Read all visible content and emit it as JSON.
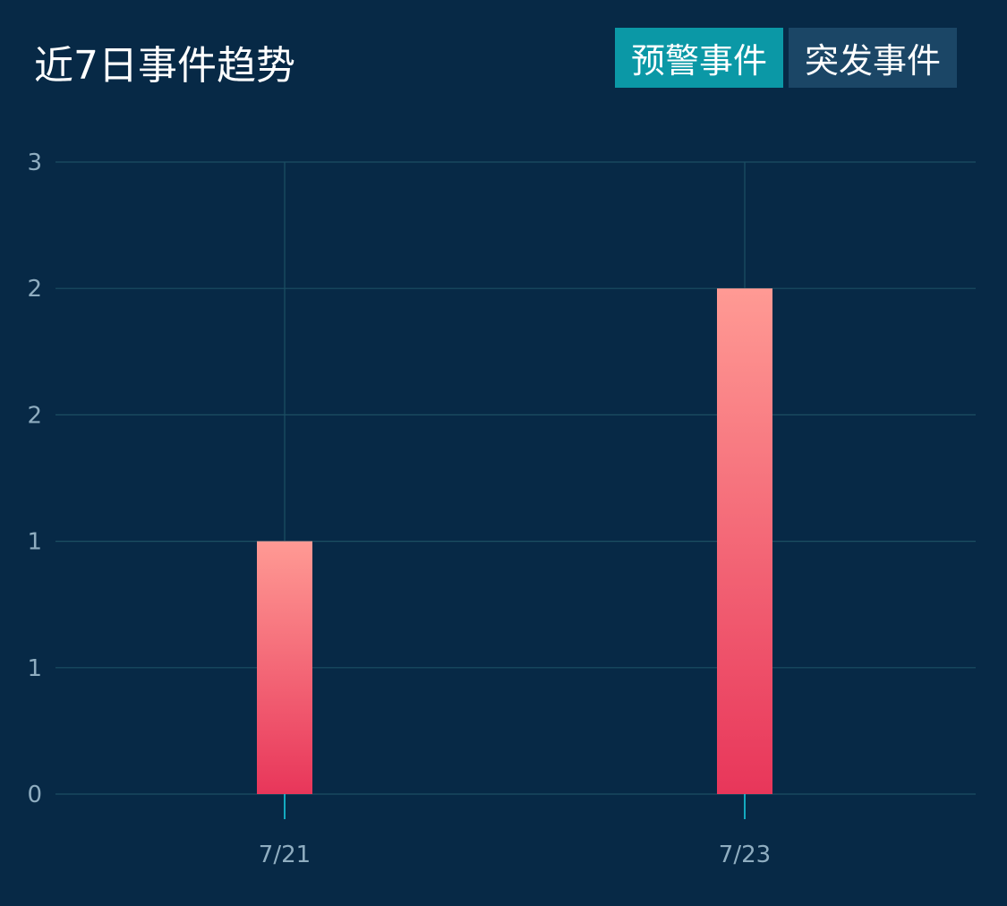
{
  "header": {
    "title": "近7日事件趋势",
    "tabs": [
      {
        "label": "预警事件",
        "active": true
      },
      {
        "label": "突发事件",
        "active": false
      }
    ]
  },
  "colors": {
    "background": "#072946",
    "grid": "#1c4f63",
    "active_tab": "#0b98a6",
    "inactive_tab": "#1b4666",
    "bar_top": "#ff9a94",
    "bar_bottom": "#e8365a",
    "tick_mark": "#19d6e8"
  },
  "chart_data": {
    "type": "bar",
    "categories": [
      "7/21",
      "7/23"
    ],
    "values": [
      1,
      2
    ],
    "ylim": [
      0,
      2.5
    ],
    "y_tick_labels": [
      "0",
      "1",
      "1",
      "2",
      "2",
      "3"
    ],
    "grid": true
  }
}
